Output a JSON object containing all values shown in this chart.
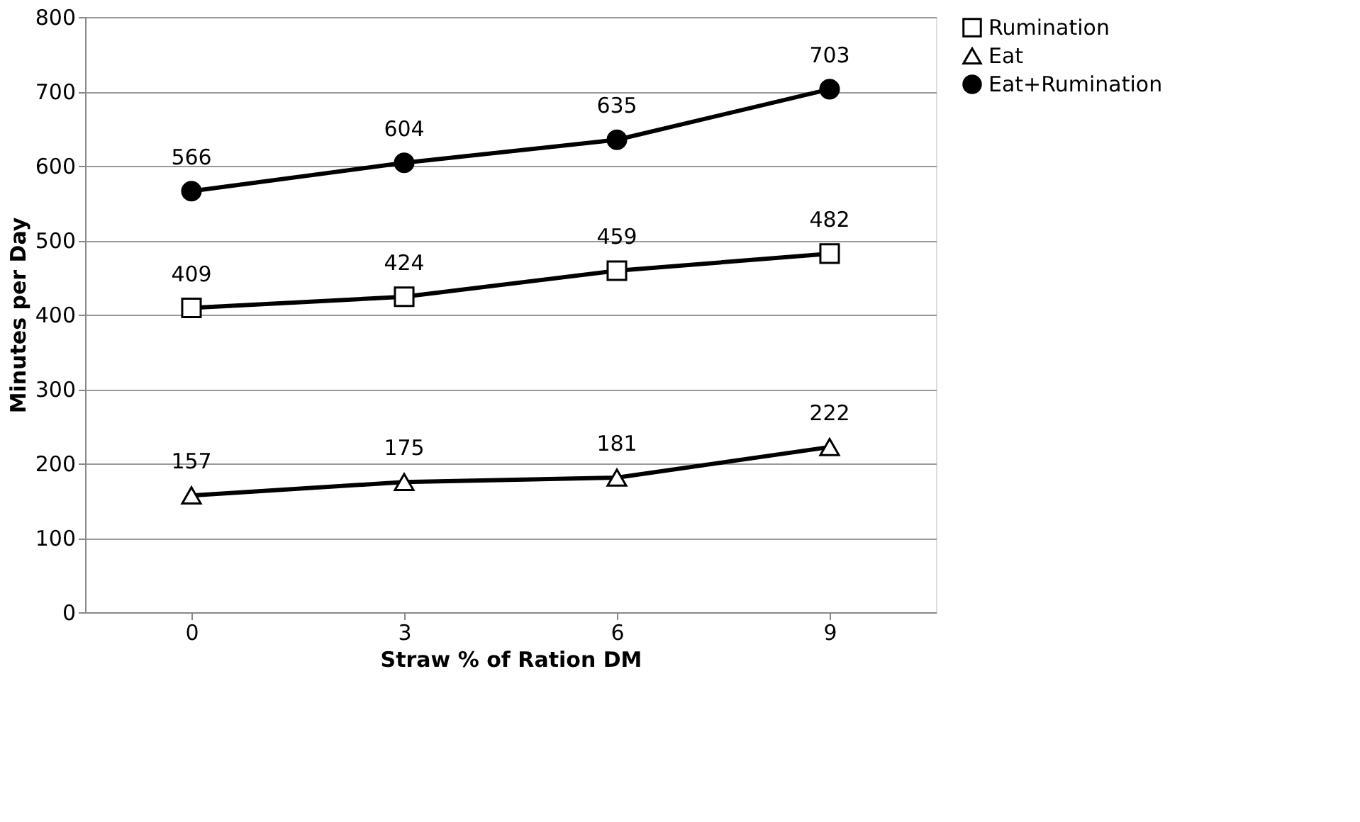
{
  "chart_data": {
    "type": "line",
    "xlabel": "Straw % of Ration DM",
    "ylabel": "Minutes per Day",
    "categories": [
      "0",
      "3",
      "6",
      "9"
    ],
    "series": [
      {
        "name": "Rumination",
        "color": "#000000",
        "marker": "square",
        "values": [
          409,
          424,
          459,
          482
        ]
      },
      {
        "name": "Eat",
        "color": "#000000",
        "marker": "triangle",
        "values": [
          157,
          175,
          181,
          222
        ]
      },
      {
        "name": "Eat+Rumination",
        "color": "#000000",
        "marker": "circle",
        "values": [
          566,
          604,
          635,
          703
        ]
      }
    ],
    "ylim": [
      0,
      800
    ],
    "yticks": [
      0,
      100,
      200,
      300,
      400,
      500,
      600,
      700,
      800
    ],
    "grid": "y",
    "legend": "right",
    "data_labels": true,
    "line_style": "solid"
  }
}
